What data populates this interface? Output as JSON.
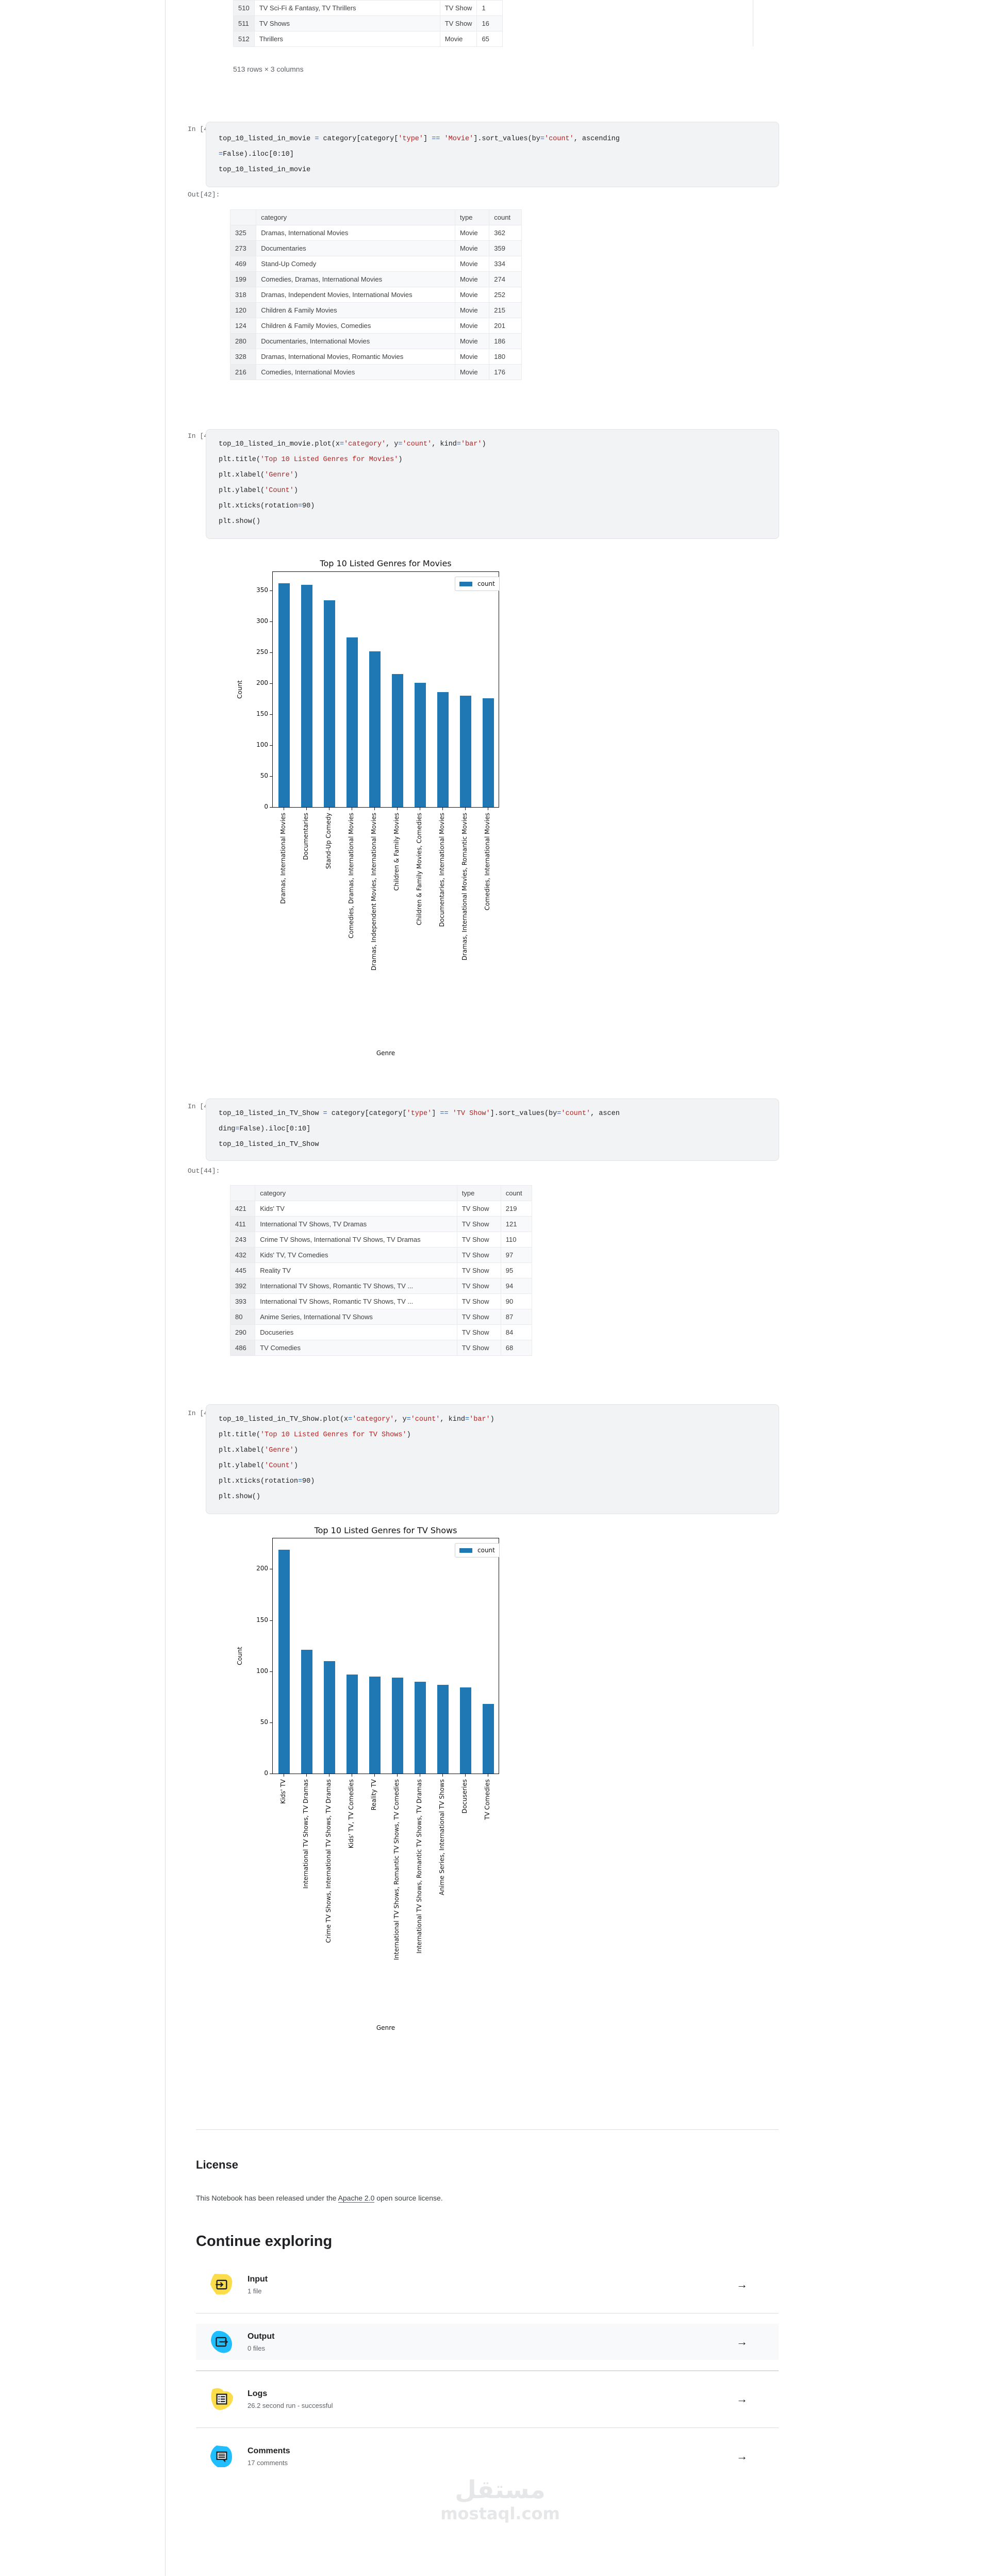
{
  "prev_table_tail": {
    "rows": [
      {
        "idx": "510",
        "category": "TV Sci-Fi & Fantasy, TV Thrillers",
        "type": "TV Show",
        "count": "1"
      },
      {
        "idx": "511",
        "category": "TV Shows",
        "type": "TV Show",
        "count": "16"
      },
      {
        "idx": "512",
        "category": "Thrillers",
        "type": "Movie",
        "count": "65"
      }
    ],
    "summary": "513 rows × 3 columns"
  },
  "cells": [
    {
      "in_prompt": "In [42]:",
      "out_prompt": "Out[42]:",
      "code_lines": [
        "top_10_listed_in_movie = category[category['type'] == 'Movie'].sort_values(by='count', ascending",
        "=False).iloc[0:10]",
        "top_10_listed_in_movie"
      ],
      "table": {
        "headers": [
          "",
          "category",
          "type",
          "count"
        ],
        "rows": [
          {
            "idx": "325",
            "category": "Dramas, International Movies",
            "type": "Movie",
            "count": "362"
          },
          {
            "idx": "273",
            "category": "Documentaries",
            "type": "Movie",
            "count": "359"
          },
          {
            "idx": "469",
            "category": "Stand-Up Comedy",
            "type": "Movie",
            "count": "334"
          },
          {
            "idx": "199",
            "category": "Comedies, Dramas, International Movies",
            "type": "Movie",
            "count": "274"
          },
          {
            "idx": "318",
            "category": "Dramas, Independent Movies, International Movies",
            "type": "Movie",
            "count": "252"
          },
          {
            "idx": "120",
            "category": "Children & Family Movies",
            "type": "Movie",
            "count": "215"
          },
          {
            "idx": "124",
            "category": "Children & Family Movies, Comedies",
            "type": "Movie",
            "count": "201"
          },
          {
            "idx": "280",
            "category": "Documentaries, International Movies",
            "type": "Movie",
            "count": "186"
          },
          {
            "idx": "328",
            "category": "Dramas, International Movies, Romantic Movies",
            "type": "Movie",
            "count": "180"
          },
          {
            "idx": "216",
            "category": "Comedies, International Movies",
            "type": "Movie",
            "count": "176"
          }
        ]
      }
    },
    {
      "in_prompt": "In [43]:",
      "code_lines": [
        "top_10_listed_in_movie.plot(x='category', y='count', kind='bar')",
        "plt.title('Top 10 Listed Genres for Movies')",
        "plt.xlabel('Genre')",
        "plt.ylabel('Count')",
        "plt.xticks(rotation=90)",
        "plt.show()"
      ]
    },
    {
      "in_prompt": "In [44]:",
      "out_prompt": "Out[44]:",
      "code_lines": [
        "top_10_listed_in_TV_Show = category[category['type'] == 'TV Show'].sort_values(by='count', ascen",
        "ding=False).iloc[0:10]",
        "top_10_listed_in_TV_Show"
      ],
      "table": {
        "headers": [
          "",
          "category",
          "type",
          "count"
        ],
        "rows": [
          {
            "idx": "421",
            "category": "Kids' TV",
            "type": "TV Show",
            "count": "219"
          },
          {
            "idx": "411",
            "category": "International TV Shows, TV Dramas",
            "type": "TV Show",
            "count": "121"
          },
          {
            "idx": "243",
            "category": "Crime TV Shows, International TV Shows, TV Dramas",
            "type": "TV Show",
            "count": "110"
          },
          {
            "idx": "432",
            "category": "Kids' TV, TV Comedies",
            "type": "TV Show",
            "count": "97"
          },
          {
            "idx": "445",
            "category": "Reality TV",
            "type": "TV Show",
            "count": "95"
          },
          {
            "idx": "392",
            "category": "International TV Shows, Romantic TV Shows, TV ...",
            "type": "TV Show",
            "count": "94"
          },
          {
            "idx": "393",
            "category": "International TV Shows, Romantic TV Shows, TV ...",
            "type": "TV Show",
            "count": "90"
          },
          {
            "idx": "80",
            "category": "Anime Series, International TV Shows",
            "type": "TV Show",
            "count": "87"
          },
          {
            "idx": "290",
            "category": "Docuseries",
            "type": "TV Show",
            "count": "84"
          },
          {
            "idx": "486",
            "category": "TV Comedies",
            "type": "TV Show",
            "count": "68"
          }
        ]
      }
    },
    {
      "in_prompt": "In [45]:",
      "code_lines": [
        "top_10_listed_in_TV_Show.plot(x='category', y='count', kind='bar')",
        "plt.title('Top 10 Listed Genres for TV Shows')",
        "plt.xlabel('Genre')",
        "plt.ylabel('Count')",
        "plt.xticks(rotation=90)",
        "plt.show()"
      ]
    }
  ],
  "chart_data": [
    {
      "type": "bar",
      "title": "Top 10 Listed Genres for Movies",
      "xlabel": "Genre",
      "ylabel": "Count",
      "categories": [
        "Dramas, International Movies",
        "Documentaries",
        "Stand-Up Comedy",
        "Comedies, Dramas, International Movies",
        "Dramas, Independent Movies, International Movies",
        "Children & Family Movies",
        "Children & Family Movies, Comedies",
        "Documentaries, International Movies",
        "Dramas, International Movies, Romantic Movies",
        "Comedies, International Movies"
      ],
      "series": [
        {
          "name": "count",
          "values": [
            362,
            359,
            334,
            274,
            252,
            215,
            201,
            186,
            180,
            176
          ],
          "color": "#1f77b4"
        }
      ],
      "yticks": [
        "0",
        "50",
        "100",
        "150",
        "200",
        "250",
        "300",
        "350"
      ],
      "ylim": [
        0,
        380
      ],
      "legend": {
        "label": "count",
        "position": "upper right"
      },
      "grid": false
    },
    {
      "type": "bar",
      "title": "Top 10 Listed Genres for TV Shows",
      "xlabel": "Genre",
      "ylabel": "Count",
      "categories": [
        "Kids' TV",
        "International TV Shows, TV Dramas",
        "Crime TV Shows, International TV Shows, TV Dramas",
        "Kids' TV, TV Comedies",
        "Reality TV",
        "International TV Shows, Romantic TV Shows, TV Comedies",
        "International TV Shows, Romantic TV Shows, TV Dramas",
        "Anime Series, International TV Shows",
        "Docuseries",
        "TV Comedies"
      ],
      "series": [
        {
          "name": "count",
          "values": [
            219,
            121,
            110,
            97,
            95,
            94,
            90,
            87,
            84,
            68
          ],
          "color": "#1f77b4"
        }
      ],
      "yticks": [
        "0",
        "50",
        "100",
        "150",
        "200"
      ],
      "ylim": [
        0,
        230
      ],
      "legend": {
        "label": "count",
        "position": "upper right"
      },
      "grid": false
    }
  ],
  "license": {
    "heading": "License",
    "text_before": "This Notebook has been released under the ",
    "link": "Apache 2.0",
    "text_after": " open source license."
  },
  "continue_exploring": {
    "heading": "Continue exploring",
    "items": [
      {
        "title": "Input",
        "subtitle": "1 file",
        "icon": "input-icon",
        "color": "#fbdc4a"
      },
      {
        "title": "Output",
        "subtitle": "0 files",
        "icon": "output-icon",
        "color": "#20beff"
      },
      {
        "title": "Logs",
        "subtitle": "26.2 second run - successful",
        "icon": "logs-icon",
        "color": "#fbdc4a"
      },
      {
        "title": "Comments",
        "subtitle": "17 comments",
        "icon": "comments-icon",
        "color": "#20beff"
      }
    ],
    "arrow": "→"
  },
  "watermark": {
    "arabic": "مستقل",
    "latin": "mostaql.com"
  }
}
